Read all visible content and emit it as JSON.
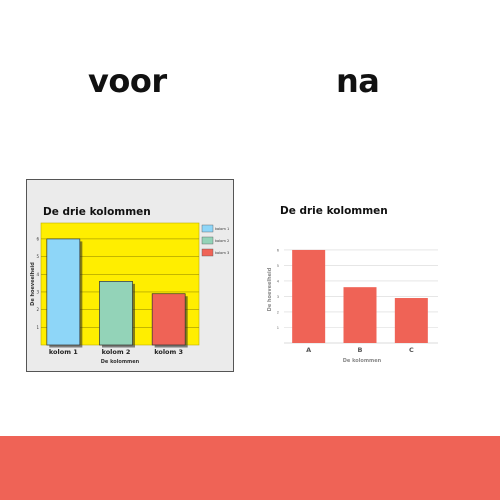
{
  "headings": {
    "before": "voor",
    "after": "na"
  },
  "colors": {
    "footer": "#ef6356",
    "before_plot_bg": "#ffee00",
    "before_panel_bg": "#ebebeb",
    "after_bar": "#ef6356"
  },
  "chart_data": [
    {
      "type": "bar",
      "title": "De drie kolommen",
      "xlabel": "De kolommen",
      "ylabel": "De hoeveelheid",
      "categories": [
        "kolom 1",
        "kolom 2",
        "kolom 3"
      ],
      "series": [
        {
          "name": "kolom 1",
          "values": [
            6.0,
            null,
            null
          ],
          "color": "#8ed6f8"
        },
        {
          "name": "kolom 2",
          "values": [
            null,
            3.6,
            null
          ],
          "color": "#93d3b8"
        },
        {
          "name": "kolom 3",
          "values": [
            null,
            null,
            2.9
          ],
          "color": "#ef6356"
        }
      ],
      "values": [
        6.0,
        3.6,
        2.9
      ],
      "yticks": [
        1,
        2,
        3,
        4,
        5,
        6
      ],
      "ylim": [
        0,
        6.9
      ],
      "grid": true,
      "legend": "right",
      "plot_background": "#ffee00"
    },
    {
      "type": "bar",
      "title": "De drie kolommen",
      "xlabel": "De kolommen",
      "ylabel": "De hoeveelheid",
      "categories": [
        "A",
        "B",
        "C"
      ],
      "values": [
        6.0,
        3.6,
        2.9
      ],
      "yticks": [
        1,
        2,
        3,
        4,
        5,
        6
      ],
      "ylim": [
        0,
        6.9
      ],
      "grid": true,
      "color": "#ef6356"
    }
  ]
}
